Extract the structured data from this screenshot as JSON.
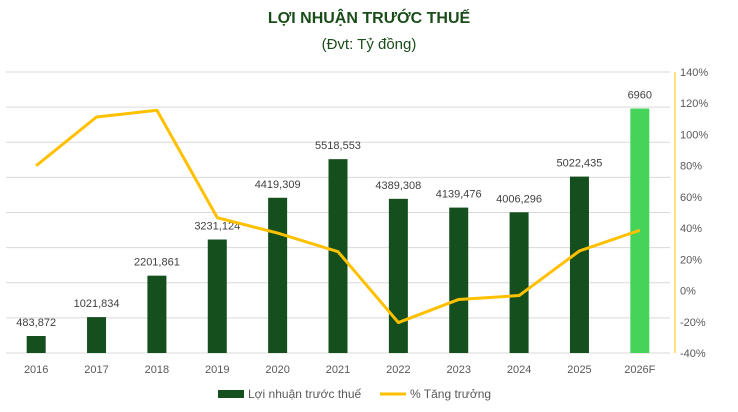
{
  "chart_data": {
    "type": "bar+line",
    "title": "LỢI NHUẬN TRƯỚC THUẾ",
    "subtitle": "(Đvt: Tỷ đồng)",
    "categories": [
      "2016",
      "2017",
      "2018",
      "2019",
      "2020",
      "2021",
      "2022",
      "2023",
      "2024",
      "2025",
      "2026F"
    ],
    "series": [
      {
        "name": "Lợi nhuận trước thuế",
        "type": "bar",
        "axis": "left",
        "color": "#154f1e",
        "highlight_color": "#45d35a",
        "highlight_index": 10,
        "values": [
          483.872,
          1021.834,
          2201.861,
          3231.124,
          4419.309,
          5518.553,
          4389.308,
          4139.476,
          4006.296,
          5022.435,
          6960
        ],
        "labels": [
          "483,872",
          "1021,834",
          "2201,861",
          "3231,124",
          "4419,309",
          "5518,553",
          "4389,308",
          "4139,476",
          "4006,296",
          "5022,435",
          "6960"
        ]
      },
      {
        "name": "% Tăng trưởng",
        "type": "line",
        "axis": "right",
        "color": "#ffc000",
        "values": [
          80,
          111.2,
          115.5,
          46.7,
          36.8,
          24.9,
          -20.5,
          -5.7,
          -3.2,
          25.4,
          38.6
        ]
      }
    ],
    "left_axis": {
      "ylim": [
        0,
        8000
      ],
      "visible": false
    },
    "right_axis": {
      "ylim": [
        -40,
        140
      ],
      "ticks": [
        "140%",
        "120%",
        "100%",
        "80%",
        "60%",
        "40%",
        "20%",
        "0%",
        "-20%",
        "-40%"
      ]
    },
    "grid": true,
    "legend": "bottom"
  }
}
